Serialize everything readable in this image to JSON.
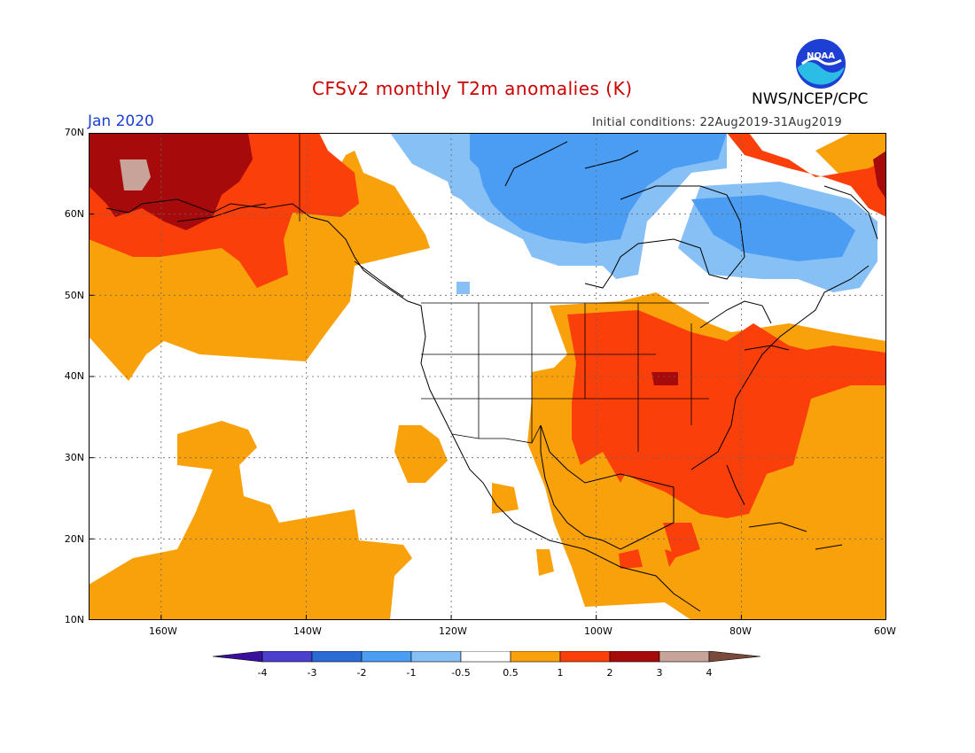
{
  "header": {
    "title": "CFSv2 monthly T2m anomalies (K)",
    "month": "Jan 2020",
    "initial_conditions": "Initial conditions: 22Aug2019-31Aug2019",
    "agency": "NWS/NCEP/CPC",
    "logo_text": "NOAA"
  },
  "map": {
    "region": "North America",
    "lat_range": [
      10,
      70
    ],
    "lon_range": [
      -170,
      -60
    ],
    "y_ticks": [
      "70N",
      "60N",
      "50N",
      "40N",
      "30N",
      "20N",
      "10N"
    ],
    "x_ticks": [
      "160W",
      "140W",
      "120W",
      "100W",
      "80W",
      "60W"
    ],
    "grid": "dotted",
    "colors": {
      "below_-4": "#3a0f9c",
      "-4_-3": "#4b3fcf",
      "-3_-2": "#2b6bd6",
      "-2_-1": "#4a9df2",
      "-1_-0.5": "#86c0f5",
      "-0.5_0.5": "#ffffff",
      "0.5_1": "#f9a10b",
      "1_2": "#fb3f0a",
      "2_3": "#a70a0a",
      "3_4": "#c8a39a",
      "above_4": "#7a4b3c"
    }
  },
  "colorbar": {
    "labels": [
      "-4",
      "-3",
      "-2",
      "-1",
      "-0.5",
      "0.5",
      "1",
      "2",
      "3",
      "4"
    ],
    "colors": [
      "#3a0f9c",
      "#4b3fcf",
      "#2b6bd6",
      "#4a9df2",
      "#86c0f5",
      "#ffffff",
      "#f9a10b",
      "#fb3f0a",
      "#a70a0a",
      "#c8a39a",
      "#7a4b3c"
    ]
  }
}
